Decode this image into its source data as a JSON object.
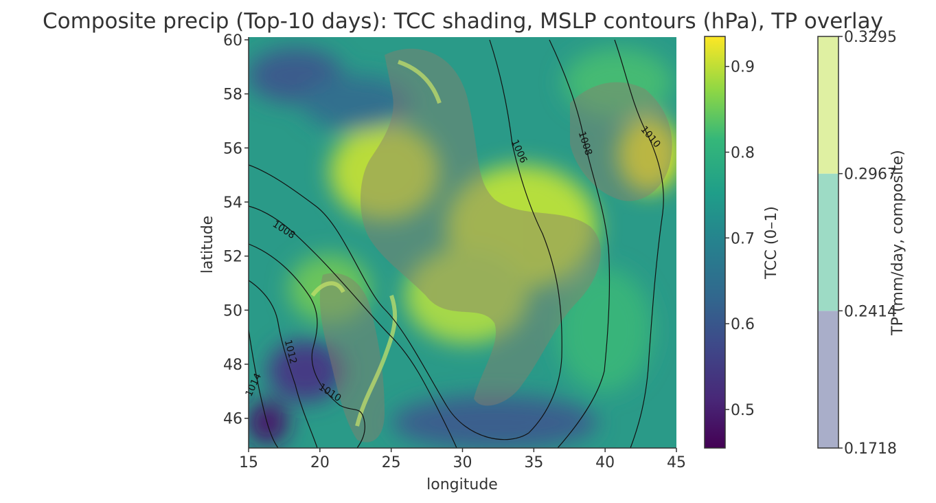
{
  "chart_data": {
    "type": "heatmap",
    "title": "Composite precip (Top-10 days): TCC shading, MSLP contours (hPa), TP overlay",
    "xlabel": "longitude",
    "ylabel": "latitude",
    "xlim": [
      15,
      45
    ],
    "ylim": [
      44.9,
      60.1
    ],
    "x_ticks": [
      "15",
      "20",
      "25",
      "30",
      "35",
      "40",
      "45"
    ],
    "y_ticks": [
      "46",
      "48",
      "50",
      "52",
      "54",
      "56",
      "58",
      "60"
    ],
    "tcc": {
      "label": "TCC (0–1)",
      "colormap": "viridis",
      "range": [
        0.455,
        0.935
      ],
      "ticks": [
        "0.5",
        "0.6",
        "0.7",
        "0.8",
        "0.9"
      ]
    },
    "tp": {
      "label": "TP (mm/day, composite)",
      "levels": [
        "0.1718",
        "0.2414",
        "0.2967",
        "0.3295"
      ],
      "level_values": [
        0.1718,
        0.2414,
        0.2967,
        0.3295
      ],
      "colors": [
        "#a9aec9",
        "#9ddbc5",
        "#dff0a2"
      ]
    },
    "mslp_contours": [
      {
        "level": 1006,
        "label": "1006"
      },
      {
        "level": 1008,
        "label": "1008"
      },
      {
        "level": 1010,
        "label": "1010"
      },
      {
        "level": 1012,
        "label": "1012"
      },
      {
        "level": 1014,
        "label": "1014"
      }
    ],
    "grid": false,
    "colors": {
      "contour": "#111111",
      "text": "#333333"
    }
  }
}
